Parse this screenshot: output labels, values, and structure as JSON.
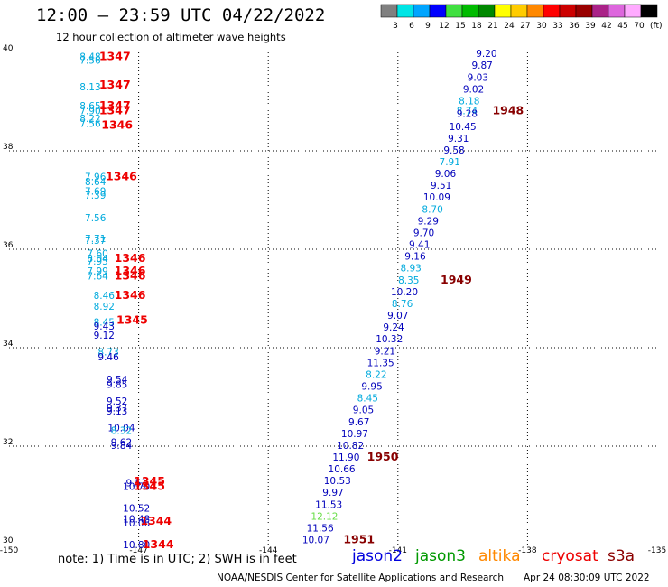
{
  "header": {
    "title": "12:00 — 23:59 UTC 04/22/2022",
    "subtitle": "12 hour collection of altimeter wave heights"
  },
  "colorbar": {
    "unit": "(ft)",
    "bins": [
      {
        "color": "#808080",
        "label": "3"
      },
      {
        "color": "#00e5e5",
        "label": "6"
      },
      {
        "color": "#00a5ff",
        "label": "9"
      },
      {
        "color": "#0000ff",
        "label": "12"
      },
      {
        "color": "#40e040",
        "label": "15"
      },
      {
        "color": "#00bb00",
        "label": "18"
      },
      {
        "color": "#008800",
        "label": "21"
      },
      {
        "color": "#ffff00",
        "label": "24"
      },
      {
        "color": "#ffcc00",
        "label": "27"
      },
      {
        "color": "#ff8800",
        "label": "30"
      },
      {
        "color": "#ff0000",
        "label": "33"
      },
      {
        "color": "#cc0000",
        "label": "36"
      },
      {
        "color": "#990000",
        "label": "39"
      },
      {
        "color": "#aa2288",
        "label": "42"
      },
      {
        "color": "#dd66dd",
        "label": "45"
      },
      {
        "color": "#ffaaff",
        "label": "70"
      },
      {
        "color": "#000000",
        "label": ""
      }
    ]
  },
  "footer": {
    "note": "note: 1) Time is in UTC; 2) SWH is in feet",
    "satellites": [
      {
        "name": "jason2",
        "color": "#0000dd"
      },
      {
        "name": "jason3",
        "color": "#009900"
      },
      {
        "name": "altika",
        "color": "#ff8800"
      },
      {
        "name": "cryosat",
        "color": "#ee0000"
      },
      {
        "name": "s3a",
        "color": "#8b0000"
      }
    ],
    "credit": "NOAA/NESDIS Center for Satellite Applications and Research",
    "timestamp": "Apr 24 08:30:09 UTC 2022"
  },
  "chart_data": {
    "type": "scatter",
    "title": "12:00 — 23:59 UTC 04/22/2022",
    "subtitle": "12 hour collection of altimeter wave heights",
    "xlabel": "",
    "ylabel": "",
    "xlim": [
      -150,
      -135
    ],
    "ylim": [
      30,
      40
    ],
    "x_ticks": [
      "-150",
      "-147",
      "-144",
      "-141",
      "-138",
      "-135"
    ],
    "y_ticks": [
      "30",
      "32",
      "34",
      "36",
      "38",
      "40"
    ],
    "grid": true,
    "colors": {
      "cyan": "#00aadd",
      "blue": "#0000bb",
      "green": "#66dd44",
      "red": "#ee0000",
      "darkred": "#880000"
    },
    "points": [
      {
        "lon": -148.12,
        "lat": 39.92,
        "label": "8.48",
        "color": "cyan"
      },
      {
        "lon": -148.12,
        "lat": 39.84,
        "label": "7.56",
        "color": "cyan"
      },
      {
        "lon": -148.12,
        "lat": 39.3,
        "label": "8.13",
        "color": "cyan"
      },
      {
        "lon": -148.12,
        "lat": 38.92,
        "label": "8.65",
        "color": "cyan"
      },
      {
        "lon": -148.12,
        "lat": 38.82,
        "label": "7.90",
        "color": "cyan"
      },
      {
        "lon": -148.12,
        "lat": 38.66,
        "label": "8.22",
        "color": "cyan"
      },
      {
        "lon": -148.12,
        "lat": 38.56,
        "label": "7.56",
        "color": "cyan"
      },
      {
        "lon": -148.0,
        "lat": 37.48,
        "label": "7.96",
        "color": "cyan"
      },
      {
        "lon": -148.0,
        "lat": 37.38,
        "label": "8.64",
        "color": "cyan"
      },
      {
        "lon": -148.0,
        "lat": 37.18,
        "label": "7.69",
        "color": "cyan"
      },
      {
        "lon": -148.0,
        "lat": 37.1,
        "label": "7.39",
        "color": "cyan"
      },
      {
        "lon": -148.0,
        "lat": 36.64,
        "label": "7.56",
        "color": "cyan"
      },
      {
        "lon": -148.0,
        "lat": 36.22,
        "label": "7.71",
        "color": "cyan"
      },
      {
        "lon": -148.0,
        "lat": 36.18,
        "label": "7.37",
        "color": "cyan"
      },
      {
        "lon": -147.95,
        "lat": 35.92,
        "label": "7.60",
        "color": "cyan"
      },
      {
        "lon": -147.95,
        "lat": 35.82,
        "label": "8.04",
        "color": "cyan"
      },
      {
        "lon": -147.95,
        "lat": 35.76,
        "label": "7.95",
        "color": "cyan"
      },
      {
        "lon": -147.95,
        "lat": 35.56,
        "label": "7.99",
        "color": "cyan"
      },
      {
        "lon": -147.95,
        "lat": 35.46,
        "label": "7.64",
        "color": "cyan"
      },
      {
        "lon": -147.8,
        "lat": 35.06,
        "label": "8.46",
        "color": "cyan"
      },
      {
        "lon": -147.8,
        "lat": 34.84,
        "label": "8.92",
        "color": "cyan"
      },
      {
        "lon": -147.8,
        "lat": 34.52,
        "label": "8.45",
        "color": "cyan"
      },
      {
        "lon": -147.8,
        "lat": 34.44,
        "label": "9.43",
        "color": "blue"
      },
      {
        "lon": -147.8,
        "lat": 34.26,
        "label": "9.12",
        "color": "blue"
      },
      {
        "lon": -147.7,
        "lat": 33.92,
        "label": "8.73",
        "color": "cyan"
      },
      {
        "lon": -147.7,
        "lat": 33.82,
        "label": "9.46",
        "color": "blue"
      },
      {
        "lon": -147.5,
        "lat": 33.36,
        "label": "9.54",
        "color": "blue"
      },
      {
        "lon": -147.5,
        "lat": 33.26,
        "label": "9.85",
        "color": "blue"
      },
      {
        "lon": -147.5,
        "lat": 32.92,
        "label": "9.52",
        "color": "blue"
      },
      {
        "lon": -147.5,
        "lat": 32.78,
        "label": "9.37",
        "color": "blue"
      },
      {
        "lon": -147.5,
        "lat": 32.72,
        "label": "9.13",
        "color": "blue"
      },
      {
        "lon": -147.4,
        "lat": 32.38,
        "label": "10.04",
        "color": "blue"
      },
      {
        "lon": -147.4,
        "lat": 32.32,
        "label": "8.32",
        "color": "cyan"
      },
      {
        "lon": -147.4,
        "lat": 32.08,
        "label": "9.62",
        "color": "blue"
      },
      {
        "lon": -147.4,
        "lat": 32.02,
        "label": "9.84",
        "color": "blue"
      },
      {
        "lon": -147.05,
        "lat": 31.26,
        "label": "9.51",
        "color": "blue"
      },
      {
        "lon": -147.05,
        "lat": 31.18,
        "label": "10.70",
        "color": "blue"
      },
      {
        "lon": -147.05,
        "lat": 30.74,
        "label": "10.52",
        "color": "blue"
      },
      {
        "lon": -147.05,
        "lat": 30.52,
        "label": "10.48",
        "color": "blue"
      },
      {
        "lon": -147.05,
        "lat": 30.44,
        "label": "10.06",
        "color": "blue"
      },
      {
        "lon": -147.05,
        "lat": 30.0,
        "label": "10.80",
        "color": "blue"
      },
      {
        "lon": -147.55,
        "lat": 39.92,
        "label": "1347",
        "color": "red",
        "bold": true
      },
      {
        "lon": -147.55,
        "lat": 39.34,
        "label": "1347",
        "color": "red",
        "bold": true
      },
      {
        "lon": -147.55,
        "lat": 38.92,
        "label": "1347",
        "color": "red",
        "bold": true
      },
      {
        "lon": -147.55,
        "lat": 38.82,
        "label": "1347",
        "color": "red",
        "bold": true
      },
      {
        "lon": -147.5,
        "lat": 38.52,
        "label": "1346",
        "color": "red",
        "bold": true
      },
      {
        "lon": -147.4,
        "lat": 37.48,
        "label": "1346",
        "color": "red",
        "bold": true
      },
      {
        "lon": -147.2,
        "lat": 35.82,
        "label": "1346",
        "color": "red",
        "bold": true
      },
      {
        "lon": -147.2,
        "lat": 35.56,
        "label": "1346",
        "color": "red",
        "bold": true
      },
      {
        "lon": -147.2,
        "lat": 35.46,
        "label": "1346",
        "color": "red",
        "bold": true
      },
      {
        "lon": -147.2,
        "lat": 35.06,
        "label": "1346",
        "color": "red",
        "bold": true
      },
      {
        "lon": -147.15,
        "lat": 34.56,
        "label": "1345",
        "color": "red",
        "bold": true
      },
      {
        "lon": -146.75,
        "lat": 31.28,
        "label": "1345",
        "color": "red",
        "bold": true
      },
      {
        "lon": -146.75,
        "lat": 31.18,
        "label": "1345",
        "color": "red",
        "bold": true
      },
      {
        "lon": -146.6,
        "lat": 30.48,
        "label": "1344",
        "color": "red",
        "bold": true
      },
      {
        "lon": -146.55,
        "lat": 30.0,
        "label": "1344",
        "color": "red",
        "bold": true
      },
      {
        "lon": -138.95,
        "lat": 39.98,
        "label": "9.20",
        "color": "blue"
      },
      {
        "lon": -139.05,
        "lat": 39.74,
        "label": "9.87",
        "color": "blue"
      },
      {
        "lon": -139.15,
        "lat": 39.5,
        "label": "9.03",
        "color": "blue"
      },
      {
        "lon": -139.25,
        "lat": 39.26,
        "label": "9.02",
        "color": "blue"
      },
      {
        "lon": -139.35,
        "lat": 39.02,
        "label": "8.18",
        "color": "cyan"
      },
      {
        "lon": -139.4,
        "lat": 38.82,
        "label": "8.74",
        "color": "cyan"
      },
      {
        "lon": -139.4,
        "lat": 38.76,
        "label": "9.28",
        "color": "blue"
      },
      {
        "lon": -139.5,
        "lat": 38.5,
        "label": "10.45",
        "color": "blue"
      },
      {
        "lon": -139.6,
        "lat": 38.26,
        "label": "9.31",
        "color": "blue"
      },
      {
        "lon": -139.7,
        "lat": 38.02,
        "label": "9.58",
        "color": "blue"
      },
      {
        "lon": -139.8,
        "lat": 37.78,
        "label": "7.91",
        "color": "cyan"
      },
      {
        "lon": -139.9,
        "lat": 37.54,
        "label": "9.06",
        "color": "blue"
      },
      {
        "lon": -140.0,
        "lat": 37.3,
        "label": "9.51",
        "color": "blue"
      },
      {
        "lon": -140.1,
        "lat": 37.06,
        "label": "10.09",
        "color": "blue"
      },
      {
        "lon": -140.2,
        "lat": 36.82,
        "label": "8.70",
        "color": "cyan"
      },
      {
        "lon": -140.3,
        "lat": 36.58,
        "label": "9.29",
        "color": "blue"
      },
      {
        "lon": -140.4,
        "lat": 36.34,
        "label": "9.70",
        "color": "blue"
      },
      {
        "lon": -140.5,
        "lat": 36.1,
        "label": "9.41",
        "color": "blue"
      },
      {
        "lon": -140.6,
        "lat": 35.86,
        "label": "9.16",
        "color": "blue"
      },
      {
        "lon": -140.7,
        "lat": 35.62,
        "label": "8.93",
        "color": "cyan"
      },
      {
        "lon": -140.75,
        "lat": 35.38,
        "label": "8.35",
        "color": "cyan"
      },
      {
        "lon": -140.85,
        "lat": 35.14,
        "label": "10.20",
        "color": "blue"
      },
      {
        "lon": -140.9,
        "lat": 34.9,
        "label": "8.76",
        "color": "cyan"
      },
      {
        "lon": -141.0,
        "lat": 34.66,
        "label": "9.07",
        "color": "blue"
      },
      {
        "lon": -141.1,
        "lat": 34.42,
        "label": "9.24",
        "color": "blue"
      },
      {
        "lon": -141.2,
        "lat": 34.18,
        "label": "10.32",
        "color": "blue"
      },
      {
        "lon": -141.3,
        "lat": 33.94,
        "label": "9.21",
        "color": "blue"
      },
      {
        "lon": -141.4,
        "lat": 33.7,
        "label": "11.35",
        "color": "blue"
      },
      {
        "lon": -141.5,
        "lat": 33.46,
        "label": "8.22",
        "color": "cyan"
      },
      {
        "lon": -141.6,
        "lat": 33.22,
        "label": "9.95",
        "color": "blue"
      },
      {
        "lon": -141.7,
        "lat": 32.98,
        "label": "8.45",
        "color": "cyan"
      },
      {
        "lon": -141.8,
        "lat": 32.74,
        "label": "9.05",
        "color": "blue"
      },
      {
        "lon": -141.9,
        "lat": 32.5,
        "label": "9.67",
        "color": "blue"
      },
      {
        "lon": -142.0,
        "lat": 32.26,
        "label": "10.97",
        "color": "blue"
      },
      {
        "lon": -142.1,
        "lat": 32.02,
        "label": "10.82",
        "color": "blue"
      },
      {
        "lon": -142.2,
        "lat": 31.78,
        "label": "11.90",
        "color": "blue"
      },
      {
        "lon": -142.3,
        "lat": 31.54,
        "label": "10.66",
        "color": "blue"
      },
      {
        "lon": -142.4,
        "lat": 31.3,
        "label": "10.53",
        "color": "blue"
      },
      {
        "lon": -142.5,
        "lat": 31.06,
        "label": "9.97",
        "color": "blue"
      },
      {
        "lon": -142.6,
        "lat": 30.82,
        "label": "11.53",
        "color": "blue"
      },
      {
        "lon": -142.7,
        "lat": 30.58,
        "label": "12.12",
        "color": "green"
      },
      {
        "lon": -142.8,
        "lat": 30.34,
        "label": "11.56",
        "color": "blue"
      },
      {
        "lon": -142.9,
        "lat": 30.1,
        "label": "10.07",
        "color": "blue"
      },
      {
        "lon": -138.45,
        "lat": 38.82,
        "label": "1948",
        "color": "darkred",
        "bold": true
      },
      {
        "lon": -139.65,
        "lat": 35.38,
        "label": "1949",
        "color": "darkred",
        "bold": true
      },
      {
        "lon": -141.35,
        "lat": 31.78,
        "label": "1950",
        "color": "darkred",
        "bold": true
      },
      {
        "lon": -141.9,
        "lat": 30.1,
        "label": "1951",
        "color": "darkred",
        "bold": true
      }
    ]
  }
}
